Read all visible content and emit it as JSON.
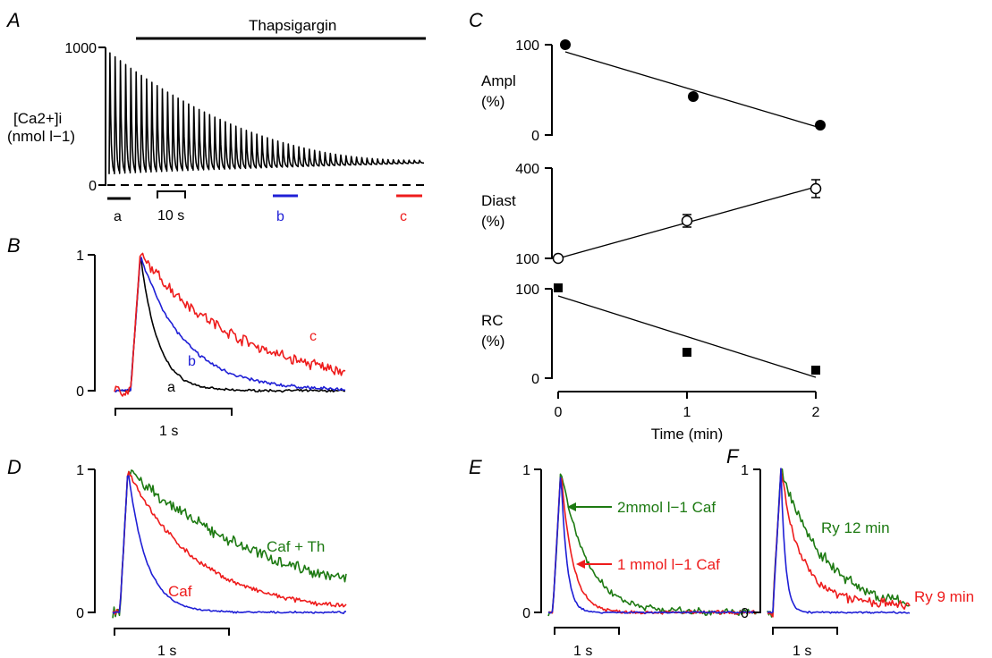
{
  "colors": {
    "black": "#000000",
    "blue": "#1f1fd6",
    "red": "#ee1c1c",
    "green": "#1d7a12"
  },
  "panel_labels": {
    "A": "A",
    "B": "B",
    "C": "C",
    "D": "D",
    "E": "E",
    "F": "F"
  },
  "chart_data": [
    {
      "panel": "A",
      "type": "line",
      "drug_label": "Thapsigargin",
      "ylabel_line1": "[Ca2+]i",
      "ylabel_line2": "(nmol l−1)",
      "ylim": [
        0,
        1000
      ],
      "yticks": [
        "1000",
        "0"
      ],
      "n_transients": 60,
      "diastolic_start": 80,
      "diastolic_end": 160,
      "peak_start": 960,
      "peak_end": 180,
      "scale_bar": "10 s",
      "segments": [
        {
          "label": "a",
          "color": "#000000"
        },
        {
          "label": "b",
          "color": "#1f1fd6"
        },
        {
          "label": "c",
          "color": "#ee1c1c"
        }
      ]
    },
    {
      "panel": "B",
      "type": "line",
      "ylim": [
        0,
        1
      ],
      "yticks": [
        "1",
        "0"
      ],
      "time_scale": "1 s",
      "series": [
        {
          "name": "a",
          "color": "#000000",
          "decay_tau_s": 0.15,
          "noise": 0.01
        },
        {
          "name": "b",
          "color": "#1f1fd6",
          "decay_tau_s": 0.38,
          "noise": 0.015
        },
        {
          "name": "c",
          "color": "#ee1c1c",
          "decay_tau_s": 0.9,
          "noise": 0.05
        }
      ]
    },
    {
      "panel": "C",
      "type": "scatter",
      "xlabel": "Time (min)",
      "xticks": [
        "0",
        "1",
        "2"
      ],
      "subplots": [
        {
          "ylabel_line1": "Ampl",
          "ylabel_line2": "(%)",
          "yticks": [
            "100",
            "0"
          ],
          "ylim": [
            0,
            100
          ],
          "marker": "filled-circle",
          "points": [
            {
              "x": 0.05,
              "y": 100
            },
            {
              "x": 1.05,
              "y": 42
            },
            {
              "x": 2.05,
              "y": 12
            }
          ],
          "fit": [
            [
              0.05,
              92
            ],
            [
              2.05,
              7
            ]
          ]
        },
        {
          "ylabel_line1": "Diast",
          "ylabel_line2": "(%)",
          "yticks": [
            "400",
            "100"
          ],
          "ylim": [
            100,
            400
          ],
          "marker": "open-circle",
          "points": [
            {
              "x": 0,
              "y": 100,
              "err": 0
            },
            {
              "x": 1,
              "y": 215,
              "err": 10
            },
            {
              "x": 2,
              "y": 340,
              "err": 20
            }
          ],
          "fit": [
            [
              0,
              100
            ],
            [
              2,
              340
            ]
          ]
        },
        {
          "ylabel_line1": "RC",
          "ylabel_line2": "(%)",
          "yticks": [
            "100",
            "0"
          ],
          "ylim": [
            0,
            100
          ],
          "marker": "filled-square",
          "points": [
            {
              "x": 0,
              "y": 100
            },
            {
              "x": 1,
              "y": 30
            },
            {
              "x": 2,
              "y": 10
            }
          ],
          "fit": [
            [
              0,
              92
            ],
            [
              2,
              1
            ]
          ]
        }
      ]
    },
    {
      "panel": "D",
      "type": "line",
      "ylim": [
        0,
        1
      ],
      "yticks": [
        "1",
        "0"
      ],
      "time_scale": "1 s",
      "series": [
        {
          "name": "",
          "color": "#1f1fd6",
          "decay_tau_s": 0.16,
          "noise": 0.008
        },
        {
          "name": "Caf",
          "color": "#ee1c1c",
          "decay_tau_s": 0.6,
          "noise": 0.02
        },
        {
          "name": "Caf + Th",
          "color": "#1d7a12",
          "decay_tau_s": 1.3,
          "noise": 0.05
        }
      ]
    },
    {
      "panel": "E",
      "type": "line",
      "ylim": [
        0,
        1
      ],
      "yticks": [
        "1",
        "0"
      ],
      "time_scale": "1 s",
      "series": [
        {
          "name": "",
          "color": "#1f1fd6",
          "decay_tau_s": 0.09,
          "noise": 0.008
        },
        {
          "name": "1 mmol l−1 Caf",
          "color": "#ee1c1c",
          "decay_tau_s": 0.18,
          "noise": 0.015
        },
        {
          "name": "2mmol l−1 Caf",
          "color": "#1d7a12",
          "decay_tau_s": 0.4,
          "noise": 0.03
        }
      ]
    },
    {
      "panel": "F",
      "type": "line",
      "ylim": [
        0,
        1
      ],
      "yticks": [
        "1",
        "0"
      ],
      "time_scale": "1 s",
      "series": [
        {
          "name": "",
          "color": "#1f1fd6",
          "decay_tau_s": 0.07,
          "noise": 0.008
        },
        {
          "name": "Ry 9 min",
          "color": "#ee1c1c",
          "decay_tau_s": 0.25,
          "noise": 0.04,
          "plateau": 0.15
        },
        {
          "name": "Ry 12 min",
          "color": "#1d7a12",
          "decay_tau_s": 0.7,
          "noise": 0.05
        }
      ]
    }
  ]
}
